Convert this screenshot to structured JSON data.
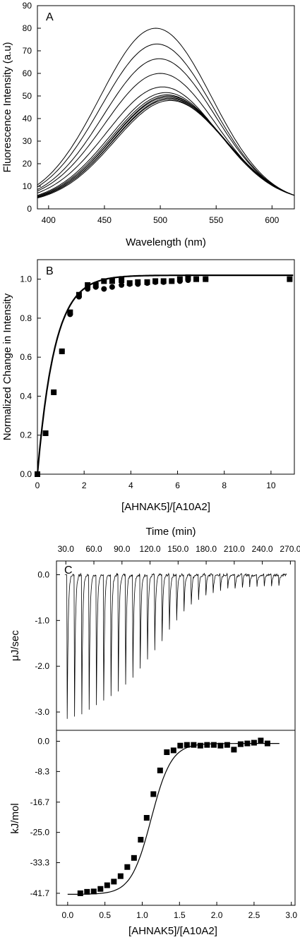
{
  "chart_data": [
    {
      "panel": "A",
      "type": "line",
      "xlabel": "Wavelength (nm)",
      "ylabel": "Fluorescence Intensity (a.u)",
      "xlim": [
        390,
        620
      ],
      "ylim": [
        0,
        90
      ],
      "xticks": [
        400,
        450,
        500,
        550,
        600
      ],
      "yticks": [
        0,
        10,
        20,
        30,
        40,
        50,
        60,
        70,
        80,
        90
      ],
      "curve_model": {
        "shape": "gaussian",
        "baseline": 0,
        "width_sd": 50,
        "x_end": 620,
        "y_end": 6
      },
      "series": [
        {
          "peak_x": 496,
          "peak_y": 80
        },
        {
          "peak_x": 497,
          "peak_y": 73
        },
        {
          "peak_x": 499,
          "peak_y": 66.5
        },
        {
          "peak_x": 500,
          "peak_y": 60
        },
        {
          "peak_x": 502,
          "peak_y": 54
        },
        {
          "peak_x": 505,
          "peak_y": 51.5
        },
        {
          "peak_x": 506,
          "peak_y": 50.5
        },
        {
          "peak_x": 507,
          "peak_y": 50
        },
        {
          "peak_x": 507,
          "peak_y": 49.5
        },
        {
          "peak_x": 508,
          "peak_y": 49
        },
        {
          "peak_x": 508,
          "peak_y": 48.5
        },
        {
          "peak_x": 509,
          "peak_y": 48
        }
      ]
    },
    {
      "panel": "B",
      "type": "scatter",
      "xlabel": "[AHNAK5]/[A10A2]",
      "ylabel": "Normalized Change in Intensity",
      "xlim": [
        0,
        11
      ],
      "ylim": [
        0,
        1.1
      ],
      "xticks": [
        0,
        2,
        4,
        6,
        8,
        10
      ],
      "yticks": [
        0.0,
        0.2,
        0.4,
        0.6,
        0.8,
        1.0
      ],
      "series": [
        {
          "marker": "square",
          "x": [
            0,
            0.35,
            0.7,
            1.05,
            1.4,
            1.78,
            2.15,
            2.5,
            2.85,
            3.2,
            3.6,
            3.95,
            4.3,
            4.7,
            5.05,
            5.4,
            5.75,
            6.1,
            6.45,
            6.8,
            7.2,
            10.8
          ],
          "y": [
            0.0,
            0.21,
            0.42,
            0.63,
            0.83,
            0.92,
            0.97,
            0.97,
            0.99,
            0.99,
            0.995,
            0.98,
            0.985,
            0.985,
            0.99,
            0.99,
            0.99,
            1.0,
            1.01,
            1.0,
            1.0,
            1.0
          ]
        },
        {
          "marker": "circle",
          "x": [
            0,
            0.35,
            0.7,
            1.05,
            1.4,
            1.78,
            2.15,
            2.5,
            2.85,
            3.2,
            3.6,
            3.95,
            4.3,
            4.7,
            5.05,
            5.4,
            5.75,
            6.1,
            6.45,
            6.8,
            7.2
          ],
          "y": [
            0.0,
            0.21,
            0.42,
            0.63,
            0.82,
            0.91,
            0.95,
            0.96,
            0.95,
            0.96,
            0.97,
            0.975,
            0.975,
            0.98,
            0.985,
            0.985,
            0.99,
            0.99,
            0.995,
            1.0,
            1.0
          ]
        }
      ],
      "fit": {
        "model": "one-site binding",
        "asymptote": 1.02,
        "rate": 1.35
      }
    },
    {
      "panel": "C",
      "type": "line",
      "top_xlabel": "Time (min)",
      "top_xlim": [
        20,
        275
      ],
      "top_xticks": [
        "30.0",
        "60.0",
        "90.0",
        "120.0",
        "150.0",
        "180.0",
        "210.0",
        "240.0",
        "270.0"
      ],
      "ylabel": "μJ/sec",
      "ylim": [
        -3.4,
        0.3
      ],
      "yticks": [
        "0.0",
        "-1.0",
        "-2.0",
        "-3.0"
      ],
      "injections": {
        "count": 30,
        "first_time": 31,
        "spacing": 7.8,
        "end_time": 267,
        "peak_heights": [
          -3.15,
          -3.1,
          -3.05,
          -2.95,
          -2.85,
          -2.75,
          -2.65,
          -2.55,
          -2.4,
          -2.25,
          -2.05,
          -1.85,
          -1.65,
          -1.45,
          -1.2,
          -1.0,
          -0.8,
          -0.65,
          -0.55,
          -0.45,
          -0.4,
          -0.35,
          -0.3,
          -0.3,
          -0.28,
          -0.27,
          -0.26,
          -0.25,
          -0.25,
          -0.24
        ]
      }
    },
    {
      "panel": "C-bottom",
      "type": "scatter",
      "xlabel": "[AHNAK5]/[A10A2]",
      "ylabel": "kJ/mol",
      "xlim": [
        -0.15,
        3.05
      ],
      "ylim": [
        -45,
        3
      ],
      "xticks": [
        "0.0",
        "0.5",
        "1.0",
        "1.5",
        "2.0",
        "2.5",
        "3.0"
      ],
      "yticks": [
        "0.0",
        "-8.3",
        "-16.7",
        "-25.0",
        "-33.3",
        "-41.7"
      ],
      "series": [
        {
          "marker": "square",
          "x": [
            0.17,
            0.26,
            0.35,
            0.44,
            0.53,
            0.62,
            0.71,
            0.8,
            0.89,
            0.98,
            1.06,
            1.15,
            1.24,
            1.33,
            1.42,
            1.51,
            1.6,
            1.69,
            1.78,
            1.87,
            1.96,
            2.05,
            2.14,
            2.23,
            2.32,
            2.41,
            2.5,
            2.59,
            2.68
          ],
          "y": [
            -41.7,
            -41.3,
            -41.2,
            -40.5,
            -39.5,
            -38.5,
            -37.0,
            -34.5,
            -32.0,
            -27.0,
            -21.0,
            -14.5,
            -8.0,
            -3.0,
            -2.5,
            -1.2,
            -1.0,
            -1.0,
            -1.2,
            -1.0,
            -1.0,
            -1.2,
            -1.0,
            -2.3,
            -0.8,
            -0.6,
            -0.4,
            0.2,
            -0.6
          ]
        }
      ],
      "fit": {
        "model": "sigmoid",
        "upper": -0.6,
        "lower": -42.0,
        "midpoint": 1.12,
        "slope": 0.135,
        "x_start": 0.0,
        "x_end": 2.85
      }
    }
  ],
  "labels": {
    "panel_a": "A",
    "panel_b": "B",
    "panel_c": "C",
    "a_xlabel": "Wavelength (nm)",
    "a_ylabel": "Fluorescence Intensity (a.u)",
    "b_xlabel": "[AHNAK5]/[A10A2]",
    "b_ylabel": "Normalized Change in Intensity",
    "c_top_xlabel": "Time (min)",
    "c_ylabel_top": "μJ/sec",
    "c_ylabel_bottom": "kJ/mol",
    "c_xlabel": "[AHNAK5]/[A10A2]"
  },
  "colors": {
    "ink": "#000000",
    "background": "#ffffff"
  }
}
